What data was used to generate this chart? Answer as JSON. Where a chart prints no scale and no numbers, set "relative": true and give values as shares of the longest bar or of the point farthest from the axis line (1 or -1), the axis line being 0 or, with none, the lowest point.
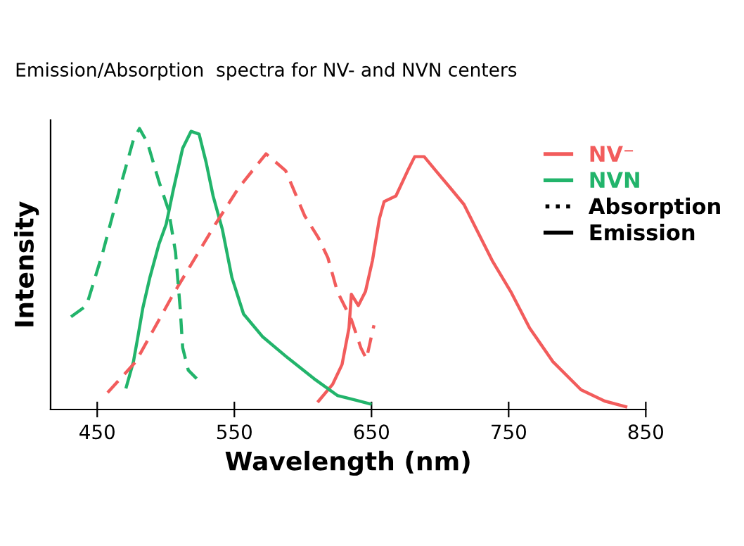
{
  "chart_data": {
    "type": "line",
    "title": "Emission/Absorption  spectra for NV- and NVN centers",
    "xlabel": "Wavelength (nm)",
    "ylabel": "Intensity",
    "relative": true,
    "xlim": [
      416,
      850
    ],
    "xticks": [
      450,
      550,
      650,
      750,
      850
    ],
    "grid": false,
    "legend": "top right",
    "marker": "none",
    "annotations": [
      "Absorption",
      "Emission"
    ],
    "series": [
      {
        "name": "NV⁻",
        "color": "#f25c5c",
        "line_style": "solid",
        "x": [
          611.4,
          621.7,
          628.5,
          633.6,
          635.3,
          640.4,
          645.6,
          650.7,
          655.8,
          659.2,
          667.8,
          676.4,
          681.5,
          688.4,
          696.9,
          707.2,
          717.4,
          727.7,
          738,
          751.5,
          765.3,
          782.3,
          802.8,
          820,
          835.4
        ],
        "values": [
          0.03,
          0.09,
          0.16,
          0.29,
          0.41,
          0.37,
          0.42,
          0.53,
          0.68,
          0.74,
          0.76,
          0.85,
          0.9,
          0.9,
          0.85,
          0.79,
          0.73,
          0.63,
          0.53,
          0.42,
          0.29,
          0.17,
          0.07,
          0.03,
          0.01
        ]
      },
      {
        "name": "NVN",
        "color": "#22b46b",
        "line_style": "solid",
        "x": [
          471.2,
          476.4,
          479.7,
          483.2,
          488.4,
          495.1,
          500.3,
          505.4,
          512.3,
          518.4,
          524.3,
          529.4,
          534.5,
          541.3,
          548.2,
          556.7,
          570.4,
          587.4,
          608,
          625.1,
          649
        ],
        "values": [
          0.08,
          0.17,
          0.26,
          0.36,
          0.47,
          0.59,
          0.66,
          0.78,
          0.93,
          0.99,
          0.98,
          0.88,
          0.76,
          0.64,
          0.47,
          0.34,
          0.26,
          0.19,
          0.11,
          0.05,
          0.02
        ]
      },
      {
        "color": "#f25c5c",
        "line_style": "dashed",
        "x": [
          457.6,
          478.1,
          505.4,
          536.2,
          553.3,
          573.1,
          587.4,
          601.2,
          611.4,
          618.2,
          625.1,
          635.3,
          642.2,
          646.3,
          649,
          651.8
        ],
        "values": [
          0.06,
          0.17,
          0.41,
          0.66,
          0.79,
          0.91,
          0.85,
          0.69,
          0.61,
          0.54,
          0.42,
          0.32,
          0.22,
          0.18,
          0.24,
          0.3
        ]
      },
      {
        "color": "#22b46b",
        "line_style": "dashed",
        "x": [
          430.9,
          442.2,
          454.1,
          466.1,
          476.4,
          480.8,
          486.6,
          495.1,
          502,
          507.1,
          510.5,
          512.3,
          516.4,
          522.5
        ],
        "values": [
          0.33,
          0.37,
          0.56,
          0.78,
          0.96,
          1.0,
          0.95,
          0.81,
          0.71,
          0.56,
          0.36,
          0.22,
          0.14,
          0.11
        ]
      }
    ]
  }
}
